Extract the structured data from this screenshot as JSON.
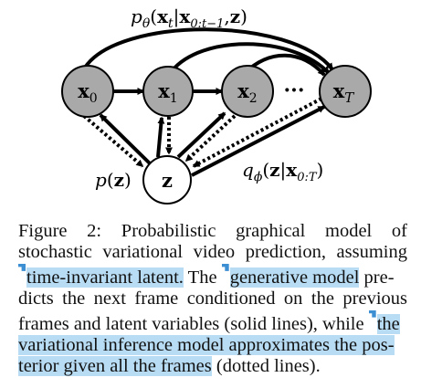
{
  "figure": {
    "nodes": {
      "x0": {
        "base": "x",
        "sub": "0"
      },
      "x1": {
        "base": "x",
        "sub": "1"
      },
      "x2": {
        "base": "x",
        "sub": "2"
      },
      "xT": {
        "base": "x",
        "sub": "T"
      },
      "z": {
        "base": "z"
      }
    },
    "ellipsis": "···",
    "label_top": {
      "fn": "p",
      "fn_sub": "θ",
      "open": "(",
      "x": "x",
      "x_sub": "t",
      "bar": "|",
      "x2": "x",
      "x2_sub": "0:t−1",
      "comma": ",",
      "z": "z",
      "close": ")"
    },
    "label_prior": {
      "fn": "p",
      "open": "(",
      "z": "z",
      "close": ")"
    },
    "label_posterior": {
      "fn": "q",
      "fn_sub": "ϕ",
      "open": "(",
      "z": "z",
      "bar": "|",
      "x": "x",
      "x_sub": "0:T",
      "close": ")"
    },
    "colors": {
      "observed_fill": "#a9a9a9",
      "latent_fill": "#ffffff",
      "stroke": "#000000"
    }
  },
  "caption": {
    "l1": "Figure 2:  Probabilistic graphical model of",
    "l2": "stochastic variational video prediction, assuming",
    "l3_hl": "time-invariant latent.",
    "l3_a": " The ",
    "l3_hl2": "generative model",
    "l3_b": " pre-",
    "l4": "dicts the next frame conditioned on the previous",
    "l5_a": "frames and latent variables (solid lines), while ",
    "l5_hl": "the",
    "l6_hl": "variational inference model approximates the pos-",
    "l7_hl": "terior given all the frames",
    "l7_b": " (dotted lines).",
    "highlight_color": "#b8dcf3",
    "marker_color": "#3d8fd3"
  }
}
